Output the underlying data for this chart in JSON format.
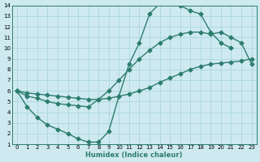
{
  "xlabel": "Humidex (Indice chaleur)",
  "ylabel": "",
  "xlim": [
    -0.5,
    23.5
  ],
  "ylim": [
    1,
    14
  ],
  "xticks": [
    0,
    1,
    2,
    3,
    4,
    5,
    6,
    7,
    8,
    9,
    10,
    11,
    12,
    13,
    14,
    15,
    16,
    17,
    18,
    19,
    20,
    21,
    22,
    23
  ],
  "yticks": [
    1,
    2,
    3,
    4,
    5,
    6,
    7,
    8,
    9,
    10,
    11,
    12,
    13,
    14
  ],
  "bg_color": "#ceeaf0",
  "grid_color": "#b0d8e2",
  "line_color": "#2d7d6e",
  "curve1_x": [
    0,
    1,
    2,
    3,
    4,
    5,
    6,
    7,
    8,
    9,
    10,
    11,
    12,
    13,
    14,
    15,
    16,
    17,
    18,
    19,
    20,
    21
  ],
  "curve1_y": [
    6.0,
    4.5,
    3.5,
    2.8,
    2.4,
    2.0,
    1.5,
    1.2,
    1.2,
    2.2,
    5.5,
    8.5,
    10.5,
    13.2,
    14.2,
    14.3,
    14.0,
    13.5,
    13.2,
    11.5,
    10.5,
    10.0
  ],
  "curve2_x": [
    0,
    1,
    2,
    3,
    4,
    5,
    6,
    7,
    8,
    9,
    10,
    11,
    12,
    13,
    14,
    15,
    16,
    17,
    18,
    19,
    20,
    21,
    22,
    23
  ],
  "curve2_y": [
    6.0,
    5.8,
    5.7,
    5.6,
    5.5,
    5.4,
    5.3,
    5.2,
    5.2,
    5.3,
    5.5,
    5.7,
    6.0,
    6.3,
    6.8,
    7.2,
    7.6,
    8.0,
    8.3,
    8.5,
    8.6,
    8.7,
    8.8,
    9.0
  ],
  "curve3_x": [
    0,
    1,
    2,
    3,
    4,
    5,
    6,
    7,
    8,
    9,
    10,
    11,
    12,
    13,
    14,
    15,
    16,
    17,
    18,
    19,
    20,
    21,
    22,
    23
  ],
  "curve3_y": [
    6.0,
    5.5,
    5.3,
    5.0,
    4.8,
    4.7,
    4.6,
    4.5,
    5.2,
    6.0,
    7.0,
    8.0,
    9.0,
    9.8,
    10.5,
    11.0,
    11.3,
    11.5,
    11.5,
    11.3,
    11.5,
    11.0,
    10.5,
    8.5
  ],
  "markersize": 2.5,
  "linewidth": 1.0
}
